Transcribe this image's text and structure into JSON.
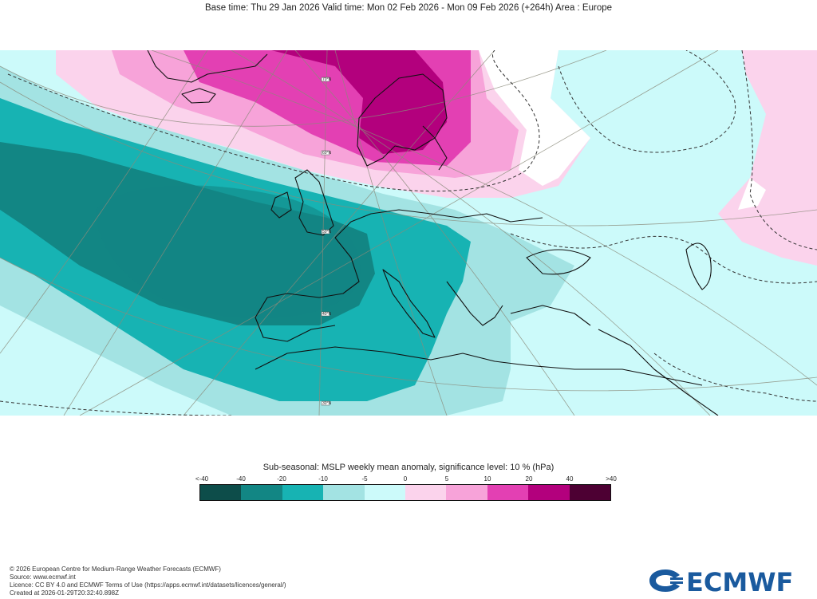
{
  "header": {
    "title": "Base time: Thu 29 Jan 2026 Valid time: Mon 02 Feb 2026 - Mon 09 Feb 2026 (+264h) Area : Europe"
  },
  "map": {
    "region": "Europe",
    "colors": {
      "lt_neg40": "#0d4d4a",
      "neg40_neg20": "#128684",
      "neg20_neg10": "#17b3b3",
      "neg10_neg5": "#a3e3e3",
      "neg5_0": "#ccfafa",
      "zero_5": "#fbd3ec",
      "five_10": "#f7a3d9",
      "ten_20": "#e340b3",
      "twenty_40": "#b3007d",
      "gt_40": "#4d0033"
    },
    "lat_labels": [
      "70°N",
      "60°N",
      "50°N",
      "40°N",
      "30°N"
    ]
  },
  "legend": {
    "title": "Sub-seasonal: MSLP weekly mean anomaly, significance level: 10 % (hPa)",
    "ticks": [
      "<-40",
      "-40",
      "-20",
      "-10",
      "-5",
      "0",
      "5",
      "10",
      "20",
      "40",
      ">40"
    ],
    "colors": [
      "#0d4d4a",
      "#128684",
      "#17b3b3",
      "#a3e3e3",
      "#ccfafa",
      "#fbd3ec",
      "#f7a3d9",
      "#e340b3",
      "#b3007d",
      "#4d0033"
    ]
  },
  "footer": {
    "line1": "© 2026 European Centre for Medium-Range Weather Forecasts (ECMWF)",
    "line2": "Source: www.ecmwf.int",
    "line3": "Licence: CC BY 4.0 and ECMWF Terms of Use (https://apps.ecmwf.int/datasets/licences/general/)",
    "line4": "Created at 2026-01-29T20:32:40.898Z"
  },
  "logo": {
    "text": "ECMWF",
    "color": "#1a5a9e"
  }
}
